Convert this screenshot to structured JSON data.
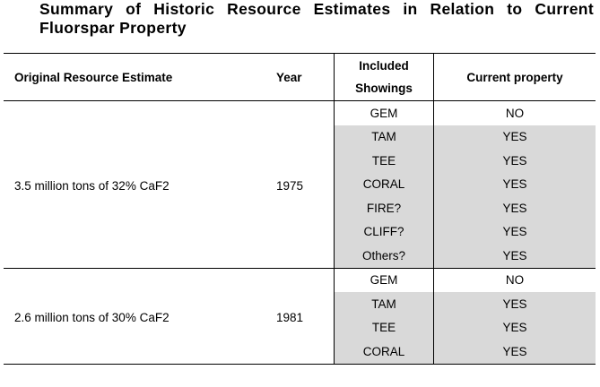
{
  "title": {
    "line1": "Summary of Historic Resource Estimates in Relation to Current",
    "line2": "Fluorspar Property"
  },
  "table": {
    "headers": {
      "original": "Original Resource Estimate",
      "year": "Year",
      "showings_line1": "Included",
      "showings_line2": "Showings",
      "current": "Current property"
    },
    "groups": [
      {
        "estimate": "3.5 million tons of 32% CaF2",
        "year": "1975",
        "rows": [
          {
            "showing": "GEM",
            "current": "NO"
          },
          {
            "showing": "TAM",
            "current": "YES"
          },
          {
            "showing": "TEE",
            "current": "YES"
          },
          {
            "showing": "CORAL",
            "current": "YES"
          },
          {
            "showing": "FIRE?",
            "current": "YES"
          },
          {
            "showing": "CLIFF?",
            "current": "YES"
          },
          {
            "showing": "Others?",
            "current": "YES"
          }
        ]
      },
      {
        "estimate": "2.6 million tons of 30% CaF2",
        "year": "1981",
        "rows": [
          {
            "showing": "GEM",
            "current": "NO"
          },
          {
            "showing": "TAM",
            "current": "YES"
          },
          {
            "showing": "TEE",
            "current": "YES"
          },
          {
            "showing": "CORAL",
            "current": "YES"
          }
        ]
      }
    ]
  }
}
